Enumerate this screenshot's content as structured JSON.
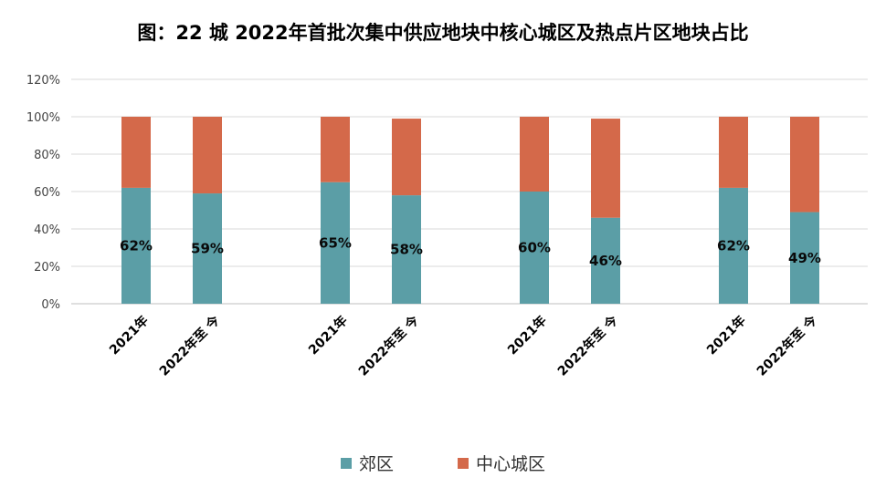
{
  "chart_data": {
    "type": "bar",
    "stacked": true,
    "title": "图：22 城 2022年首批次集中供应地块中核心城区及热点片区地块占比",
    "categories": [
      "2021年",
      "2022年至 今",
      "2021年",
      "2022年至 今",
      "2021年",
      "2022年至 今",
      "2021年",
      "2022年至 今"
    ],
    "series": [
      {
        "name": "郊区",
        "color": "#5b9ea6",
        "values": [
          62,
          59,
          65,
          58,
          60,
          46,
          62,
          49
        ]
      },
      {
        "name": "中心城区",
        "color": "#d4694a",
        "values": [
          38,
          41,
          35,
          41,
          40,
          53,
          38,
          51
        ]
      }
    ],
    "data_labels": [
      "62%",
      "59%",
      "65%",
      "58%",
      "60%",
      "46%",
      "62%",
      "49%"
    ],
    "y_ticks": [
      "0%",
      "20%",
      "40%",
      "60%",
      "80%",
      "100%",
      "120%"
    ],
    "ylim": [
      0,
      120
    ],
    "grid": true,
    "legend_position": "bottom"
  }
}
